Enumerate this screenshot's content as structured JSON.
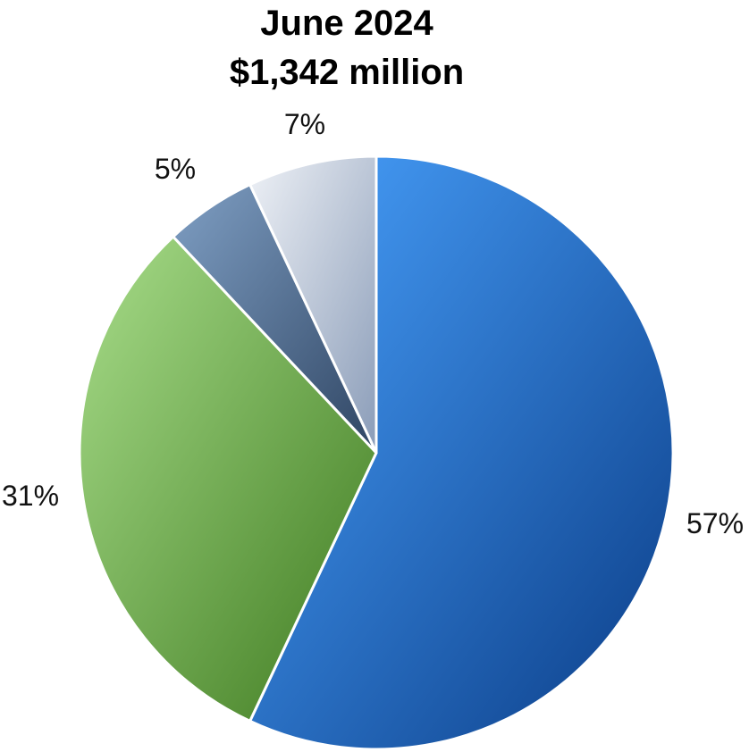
{
  "chart_data": {
    "type": "pie",
    "title": "June 2024",
    "subtitle": "$1,342 million",
    "slices": [
      {
        "label": "57%",
        "value": 57,
        "color_light": "#4aa3ff",
        "color_dark": "#0a3c86"
      },
      {
        "label": "31%",
        "value": 31,
        "color_light": "#a8dd8a",
        "color_dark": "#3e7a1f"
      },
      {
        "label": "5%",
        "value": 5,
        "color_light": "#7f9fc4",
        "color_dark": "#2f4563"
      },
      {
        "label": "7%",
        "value": 7,
        "color_light": "#eef1f6",
        "color_dark": "#8a9cb8"
      }
    ]
  }
}
